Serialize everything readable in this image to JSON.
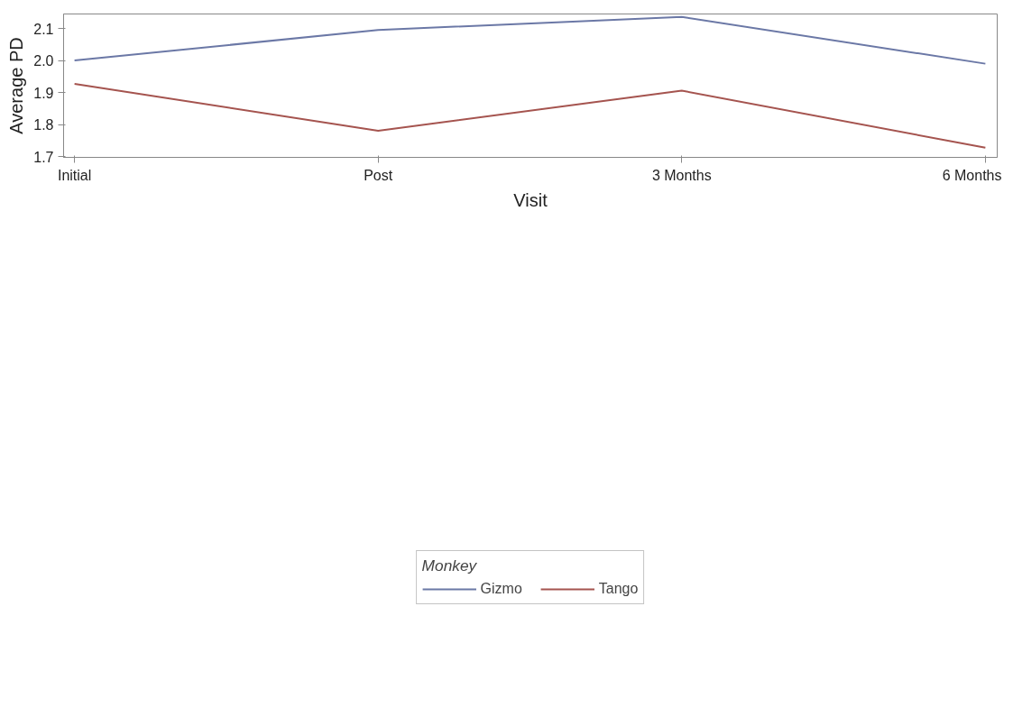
{
  "chart_data": {
    "type": "line",
    "xlabel": "Visit",
    "ylabel": "Average PD",
    "legend_title": "Monkey",
    "categories": [
      "Initial",
      "Post",
      "3 Months",
      "6 Months"
    ],
    "series": [
      {
        "name": "Gizmo",
        "color": "#6b78a6",
        "values": [
          2.0,
          2.095,
          2.136,
          1.99
        ]
      },
      {
        "name": "Tango",
        "color": "#a5544f",
        "values": [
          1.927,
          1.781,
          1.906,
          1.728
        ]
      }
    ],
    "ylim": [
      1.698,
      2.145
    ],
    "yticks": [
      {
        "value": 1.7,
        "label": "1.7"
      },
      {
        "value": 1.8,
        "label": "1.8"
      },
      {
        "value": 1.9,
        "label": "1.9"
      },
      {
        "value": 2.0,
        "label": "2.0"
      },
      {
        "value": 2.1,
        "label": "2.1"
      }
    ],
    "grid": false,
    "legend": "bottom",
    "marker": "none",
    "line_style": "solid"
  }
}
